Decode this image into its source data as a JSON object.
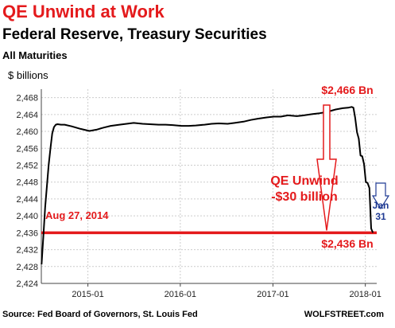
{
  "header": {
    "title": "QE Unwind at Work",
    "subtitle": "Federal Reserve, Treasury Securities",
    "subsubtitle": "All Maturities"
  },
  "footer": {
    "source": "Source: Fed Board of Governors, St. Louis Fed",
    "brand": "WOLFSTREET.com"
  },
  "annotations": {
    "peak_label": "$2,466 Bn",
    "trough_label": "$2,436 Bn",
    "unwind_line1": "QE Unwind",
    "unwind_line2": "-$30 billion",
    "date_label": "Aug 27, 2014",
    "jan_line1": "Jan",
    "jan_line2": "31"
  },
  "colors": {
    "accent_red": "#e41a1c",
    "line": "#000000",
    "navy": "#1f3a93",
    "grid": "#cccccc"
  },
  "chart_data": {
    "type": "line",
    "title": "QE Unwind at Work",
    "ylabel": "$ billions",
    "ylim": [
      2424,
      2470
    ],
    "yticks": [
      2424,
      2428,
      2432,
      2436,
      2440,
      2444,
      2448,
      2452,
      2456,
      2460,
      2464,
      2468
    ],
    "ytick_labels": [
      "2,424",
      "2,428",
      "2,432",
      "2,436",
      "2,440",
      "2,444",
      "2,448",
      "2,452",
      "2,456",
      "2,460",
      "2,464",
      "2,468"
    ],
    "xlim": [
      "2014-07-01",
      "2018-02-15"
    ],
    "xticks": [
      "2015-01-01",
      "2016-01-01",
      "2017-01-01",
      "2018-01-01"
    ],
    "xtick_labels": [
      "2015-01",
      "2016-01",
      "2017-01",
      "2018-01"
    ],
    "reference_line": 2436,
    "series": [
      {
        "x": [
          "2014-07-02",
          "2014-07-09",
          "2014-07-16",
          "2014-07-23",
          "2014-07-30",
          "2014-08-06",
          "2014-08-13",
          "2014-08-20",
          "2014-08-27",
          "2014-09-03",
          "2014-09-17",
          "2014-10-01",
          "2014-10-29",
          "2014-12-03",
          "2015-01-07",
          "2015-02-04",
          "2015-03-04",
          "2015-04-01",
          "2015-05-06",
          "2015-06-03",
          "2015-07-01",
          "2015-08-05",
          "2015-09-02",
          "2015-10-07",
          "2015-11-04",
          "2015-12-02",
          "2016-01-06",
          "2016-02-03",
          "2016-03-02",
          "2016-04-06",
          "2016-05-04",
          "2016-06-01",
          "2016-07-06",
          "2016-08-03",
          "2016-09-07",
          "2016-10-05",
          "2016-11-02",
          "2016-12-07",
          "2017-01-04",
          "2017-02-01",
          "2017-03-01",
          "2017-04-05",
          "2017-05-03",
          "2017-06-07",
          "2017-07-05",
          "2017-08-02",
          "2017-09-06",
          "2017-10-04",
          "2017-10-25",
          "2017-11-01",
          "2017-11-08",
          "2017-11-15",
          "2017-11-22",
          "2017-11-29",
          "2017-12-06",
          "2017-12-13",
          "2017-12-20",
          "2017-12-27",
          "2018-01-03",
          "2018-01-10",
          "2018-01-17",
          "2018-01-24",
          "2018-01-31"
        ],
        "y": [
          2428.5,
          2435.0,
          2442.0,
          2447.0,
          2452.0,
          2456.0,
          2459.5,
          2461.0,
          2461.6,
          2461.7,
          2461.6,
          2461.6,
          2461.2,
          2460.6,
          2460.1,
          2460.4,
          2460.9,
          2461.3,
          2461.6,
          2461.8,
          2462.0,
          2461.8,
          2461.7,
          2461.6,
          2461.6,
          2461.5,
          2461.3,
          2461.3,
          2461.4,
          2461.6,
          2461.8,
          2461.9,
          2461.8,
          2462.0,
          2462.3,
          2462.7,
          2463.0,
          2463.3,
          2463.5,
          2463.5,
          2463.8,
          2463.6,
          2463.8,
          2464.1,
          2464.3,
          2464.6,
          2465.2,
          2465.5,
          2465.6,
          2465.7,
          2465.8,
          2465.6,
          2463.2,
          2459.8,
          2458.3,
          2454.3,
          2454.1,
          2452.2,
          2448.0,
          2447.8,
          2446.6,
          2437.0,
          2436.0
        ]
      }
    ]
  }
}
